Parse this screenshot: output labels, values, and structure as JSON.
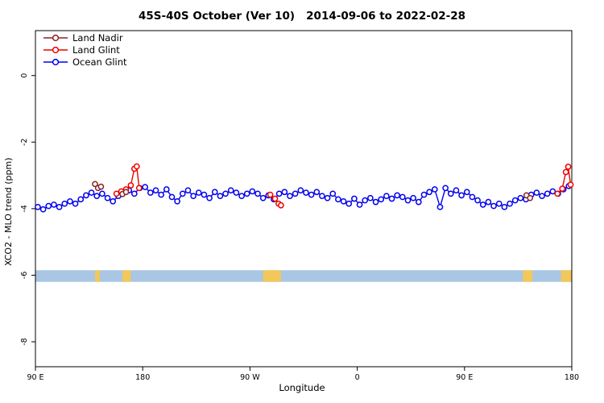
{
  "chart_data": {
    "type": "line",
    "title": "45S-40S October (Ver 10)   2014-09-06 to 2022-02-28",
    "xlabel": "Longitude",
    "ylabel": "XCO2 - MLO trend (ppm)",
    "xlim": [
      0,
      450
    ],
    "ylim": [
      -8.75,
      1.35
    ],
    "x_ticks": [
      {
        "pos": 0,
        "label": "90 E"
      },
      {
        "pos": 90,
        "label": "180"
      },
      {
        "pos": 180,
        "label": "90 W"
      },
      {
        "pos": 270,
        "label": "0"
      },
      {
        "pos": 360,
        "label": "90 E"
      },
      {
        "pos": 450,
        "label": "180"
      }
    ],
    "y_ticks": [
      {
        "val": 0,
        "label": "0"
      },
      {
        "val": -2,
        "label": "-2"
      },
      {
        "val": -4,
        "label": "-4"
      },
      {
        "val": -6,
        "label": "-6"
      },
      {
        "val": -8,
        "label": "-8"
      }
    ],
    "series": [
      {
        "name": "Land Nadir",
        "color": "#8B2323",
        "points": [
          [
            50,
            -3.26
          ],
          [
            52.5,
            -3.38
          ],
          [
            55,
            -3.34
          ],
          [
            73,
            -3.56
          ],
          [
            76,
            -3.5
          ],
          [
            412,
            -3.6
          ],
          [
            415,
            -3.68
          ]
        ]
      },
      {
        "name": "Land Glint",
        "color": "#EE0000",
        "points": [
          [
            68,
            -3.55
          ],
          [
            72,
            -3.48
          ],
          [
            76,
            -3.42
          ],
          [
            80,
            -3.3
          ],
          [
            83,
            -2.8
          ],
          [
            85,
            -2.73
          ],
          [
            87,
            -3.38
          ],
          [
            197,
            -3.58
          ],
          [
            201,
            -3.7
          ],
          [
            204,
            -3.85
          ],
          [
            206,
            -3.9
          ],
          [
            438,
            -3.55
          ],
          [
            442,
            -3.4
          ],
          [
            445,
            -2.9
          ],
          [
            447,
            -2.74
          ],
          [
            449,
            -3.28
          ]
        ]
      },
      {
        "name": "Ocean Glint",
        "color": "#0000EE",
        "points": [
          [
            2,
            -3.95
          ],
          [
            6.5,
            -4.02
          ],
          [
            11,
            -3.92
          ],
          [
            15.5,
            -3.88
          ],
          [
            20,
            -3.95
          ],
          [
            24.5,
            -3.85
          ],
          [
            29,
            -3.78
          ],
          [
            33.5,
            -3.85
          ],
          [
            38,
            -3.72
          ],
          [
            42.5,
            -3.6
          ],
          [
            47,
            -3.52
          ],
          [
            51.5,
            -3.62
          ],
          [
            56,
            -3.55
          ],
          [
            60.5,
            -3.68
          ],
          [
            65,
            -3.78
          ],
          [
            69.5,
            -3.62
          ],
          [
            74,
            -3.52
          ],
          [
            78.5,
            -3.45
          ],
          [
            83,
            -3.55
          ],
          [
            87.5,
            -3.38
          ],
          [
            92,
            -3.35
          ],
          [
            96.5,
            -3.52
          ],
          [
            101,
            -3.45
          ],
          [
            105.5,
            -3.58
          ],
          [
            110,
            -3.42
          ],
          [
            114.5,
            -3.65
          ],
          [
            119,
            -3.78
          ],
          [
            123.5,
            -3.55
          ],
          [
            128,
            -3.45
          ],
          [
            132.5,
            -3.62
          ],
          [
            137,
            -3.52
          ],
          [
            141.5,
            -3.58
          ],
          [
            146,
            -3.68
          ],
          [
            150.5,
            -3.5
          ],
          [
            155,
            -3.62
          ],
          [
            159.5,
            -3.55
          ],
          [
            164,
            -3.45
          ],
          [
            168.5,
            -3.52
          ],
          [
            173,
            -3.62
          ],
          [
            177.5,
            -3.55
          ],
          [
            182,
            -3.48
          ],
          [
            186.5,
            -3.55
          ],
          [
            191,
            -3.68
          ],
          [
            195.5,
            -3.6
          ],
          [
            200,
            -3.72
          ],
          [
            204.5,
            -3.55
          ],
          [
            209,
            -3.5
          ],
          [
            213.5,
            -3.62
          ],
          [
            218,
            -3.55
          ],
          [
            222.5,
            -3.45
          ],
          [
            227,
            -3.52
          ],
          [
            231.5,
            -3.58
          ],
          [
            236,
            -3.5
          ],
          [
            240.5,
            -3.62
          ],
          [
            245,
            -3.68
          ],
          [
            249.5,
            -3.55
          ],
          [
            254,
            -3.72
          ],
          [
            258.5,
            -3.78
          ],
          [
            263,
            -3.85
          ],
          [
            267.5,
            -3.7
          ],
          [
            272,
            -3.88
          ],
          [
            276.5,
            -3.75
          ],
          [
            281,
            -3.68
          ],
          [
            285.5,
            -3.8
          ],
          [
            290,
            -3.72
          ],
          [
            294.5,
            -3.62
          ],
          [
            299,
            -3.7
          ],
          [
            303.5,
            -3.6
          ],
          [
            308,
            -3.65
          ],
          [
            312.5,
            -3.75
          ],
          [
            317,
            -3.68
          ],
          [
            321.5,
            -3.8
          ],
          [
            326,
            -3.58
          ],
          [
            330.5,
            -3.5
          ],
          [
            335,
            -3.42
          ],
          [
            339.5,
            -3.95
          ],
          [
            344,
            -3.38
          ],
          [
            348.5,
            -3.55
          ],
          [
            353,
            -3.45
          ],
          [
            357.5,
            -3.6
          ],
          [
            362,
            -3.5
          ],
          [
            366.5,
            -3.65
          ],
          [
            371,
            -3.75
          ],
          [
            375.5,
            -3.88
          ],
          [
            380,
            -3.8
          ],
          [
            384.5,
            -3.92
          ],
          [
            389,
            -3.85
          ],
          [
            393.5,
            -3.95
          ],
          [
            398,
            -3.85
          ],
          [
            402.5,
            -3.75
          ],
          [
            407,
            -3.68
          ],
          [
            411.5,
            -3.72
          ],
          [
            416,
            -3.58
          ],
          [
            420.5,
            -3.52
          ],
          [
            425,
            -3.62
          ],
          [
            429.5,
            -3.55
          ],
          [
            434,
            -3.48
          ],
          [
            438.5,
            -3.55
          ],
          [
            443,
            -3.42
          ],
          [
            447.5,
            -3.32
          ]
        ]
      }
    ],
    "map_band": {
      "y_top": -5.85,
      "y_bottom": -6.2,
      "ocean_color": "#A9C6E4",
      "land_color": "#F2C85A",
      "land_segments": [
        [
          50,
          54
        ],
        [
          73,
          80
        ],
        [
          191,
          206
        ],
        [
          409,
          417
        ],
        [
          441,
          450
        ]
      ]
    },
    "legend_position": "top-left",
    "grid": false
  }
}
